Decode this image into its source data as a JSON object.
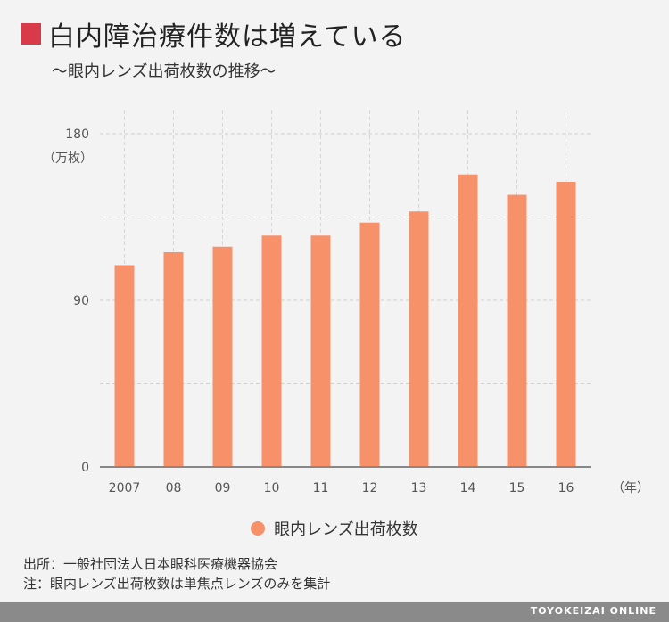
{
  "title": "白内障治療件数は増えている",
  "subtitle": "～眼内レンズ出荷枚数の推移～",
  "colors": {
    "title_mark": "#d93a49",
    "bar": "#f6916a"
  },
  "chart_data": {
    "type": "bar",
    "categories": [
      "2007",
      "08",
      "09",
      "10",
      "11",
      "12",
      "13",
      "14",
      "15",
      "16"
    ],
    "series": [
      {
        "name": "眼内レンズ出荷枚数",
        "values": [
          109,
          116,
          119,
          125,
          125,
          132,
          138,
          158,
          147,
          154
        ]
      }
    ],
    "ylim": [
      0,
      180
    ],
    "yticks": [
      0,
      90,
      180
    ],
    "ylabel": "（万枚）",
    "xlabel": "（年）",
    "grid": true,
    "legend": "bottom-center"
  },
  "notes": {
    "source": "出所：一般社団法人日本眼科医療機器協会",
    "note": "注：眼内レンズ出荷枚数は単焦点レンズのみを集計"
  },
  "footer": {
    "brand": "TOYOKEIZAI ONLINE"
  }
}
